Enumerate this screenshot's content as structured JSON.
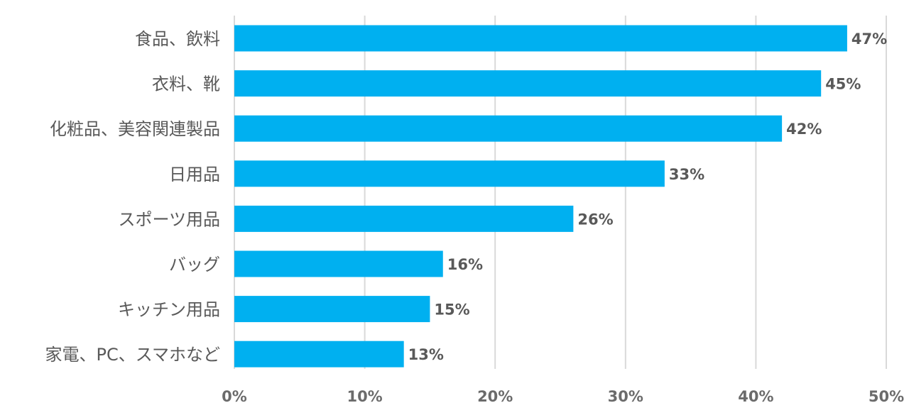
{
  "chart_data": {
    "type": "bar",
    "orientation": "horizontal",
    "categories": [
      "食品、飲料",
      "衣料、靴",
      "化粧品、美容関連製品",
      "日用品",
      "スポーツ用品",
      "バッグ",
      "キッチン用品",
      "家電、PC、スマホなど"
    ],
    "values": [
      47,
      45,
      42,
      33,
      26,
      16,
      15,
      13
    ],
    "data_labels": [
      "47%",
      "45%",
      "42%",
      "33%",
      "26%",
      "16%",
      "15%",
      "13%"
    ],
    "x_ticks": [
      0,
      10,
      20,
      30,
      40,
      50
    ],
    "x_tick_labels": [
      "0%",
      "10%",
      "20%",
      "30%",
      "40%",
      "50%"
    ],
    "xlim": [
      0,
      50
    ],
    "grid": true,
    "title": "",
    "xlabel": "",
    "ylabel": "",
    "colors": {
      "bar": "#00b0f0",
      "grid": "#d9d9d9",
      "category_text": "#595959",
      "tick_text": "#6b6b6b"
    }
  }
}
